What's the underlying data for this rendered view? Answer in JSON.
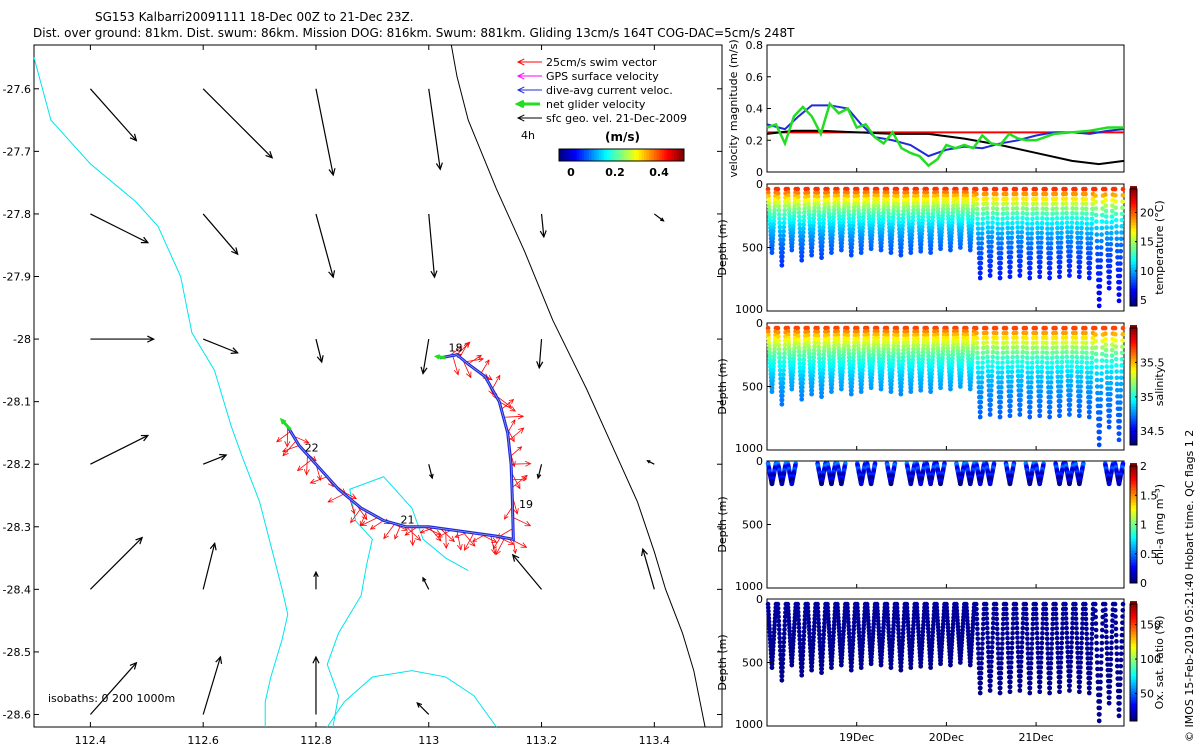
{
  "title": {
    "line1": "SG153 Kalbarri20091111 18-Dec 00Z to 21-Dec 23Z.",
    "line2": "Dist. over ground: 81km. Dist. swum: 86km. Mission DOG: 816km. Swum: 881km. Gliding 13cm/s 164T COG-DAC=5cm/s 248T"
  },
  "side_caption": "© IMOS 15-Feb-2019 05:21:40 Hobart time. QC flags 1  2",
  "colors": {
    "coast": "#00e5ee",
    "isobath": "#000000",
    "swim": "#ff0000",
    "gps": "#ff00ff",
    "dac": "#1f2bd8",
    "net": "#22dd22",
    "geo": "#000000"
  },
  "chart_data": [
    {
      "id": "map",
      "type": "scatter",
      "xlim": [
        112.3,
        113.52
      ],
      "ylim": [
        -28.62,
        -27.53
      ],
      "xticks": [
        112.4,
        112.6,
        112.8,
        113,
        113.2,
        113.4
      ],
      "xtick_labels": [
        "112.4",
        "112.6",
        "112.8",
        "113",
        "113.2",
        "113.4"
      ],
      "yticks": [
        -27.6,
        -27.7,
        -27.8,
        -27.9,
        -28,
        -28.1,
        -28.2,
        -28.3,
        -28.4,
        -28.5,
        -28.6
      ],
      "ytick_labels": [
        "-27.6",
        "-27.7",
        "-27.8",
        "-27.9",
        "-28",
        "-28.1",
        "-28.2",
        "-28.3",
        "-28.4",
        "-28.5",
        "-28.6"
      ],
      "legend": {
        "items": [
          {
            "label": "25cm/s swim vector",
            "color": "#ff0000",
            "style": "arrow"
          },
          {
            "label": "GPS surface velocity",
            "color": "#ff00ff",
            "style": "arrow"
          },
          {
            "label": "dive-avg current veloc.",
            "color": "#1f2bd8",
            "style": "arrow"
          },
          {
            "label": "net glider velocity",
            "color": "#22dd22",
            "style": "thick"
          },
          {
            "label": "sfc geo. vel. 21-Dec-2009",
            "color": "#000000",
            "style": "arrow"
          }
        ],
        "time_step": "4h",
        "units": "(m/s)",
        "colorbar_ticks": [
          "0",
          "0.2",
          "0.4"
        ]
      },
      "isobath_label": "isobaths: 0   200  1000m",
      "coastline": [
        [
          112.3,
          -27.55
        ],
        [
          112.33,
          -27.65
        ],
        [
          112.4,
          -27.72
        ],
        [
          112.48,
          -27.78
        ],
        [
          112.52,
          -27.82
        ],
        [
          112.56,
          -27.9
        ],
        [
          112.58,
          -27.99
        ],
        [
          112.62,
          -28.05
        ],
        [
          112.65,
          -28.14
        ],
        [
          112.67,
          -28.19
        ],
        [
          112.7,
          -28.26
        ],
        [
          112.72,
          -28.33
        ],
        [
          112.74,
          -28.4
        ],
        [
          112.75,
          -28.44
        ],
        [
          112.74,
          -28.48
        ],
        [
          112.72,
          -28.54
        ],
        [
          112.71,
          -28.58
        ],
        [
          112.71,
          -28.62
        ]
      ],
      "coast2": [
        [
          112.83,
          -28.62
        ],
        [
          112.84,
          -28.57
        ],
        [
          112.82,
          -28.52
        ],
        [
          112.84,
          -28.47
        ],
        [
          112.88,
          -28.41
        ],
        [
          112.89,
          -28.36
        ],
        [
          112.9,
          -28.32
        ],
        [
          112.87,
          -28.29
        ],
        [
          112.86,
          -28.24
        ],
        [
          112.92,
          -28.22
        ],
        [
          112.97,
          -28.27
        ],
        [
          112.99,
          -28.32
        ],
        [
          113.03,
          -28.35
        ],
        [
          113.07,
          -28.37
        ]
      ],
      "coast3": [
        [
          112.82,
          -28.62
        ],
        [
          112.85,
          -28.58
        ],
        [
          112.9,
          -28.54
        ],
        [
          112.97,
          -28.53
        ],
        [
          113.03,
          -28.54
        ],
        [
          113.08,
          -28.57
        ],
        [
          113.12,
          -28.62
        ]
      ],
      "isobath_1000": [
        [
          113.04,
          -27.53
        ],
        [
          113.05,
          -27.58
        ],
        [
          113.07,
          -27.65
        ],
        [
          113.12,
          -27.76
        ],
        [
          113.17,
          -27.86
        ],
        [
          113.22,
          -27.97
        ],
        [
          113.28,
          -28.08
        ],
        [
          113.33,
          -28.18
        ],
        [
          113.37,
          -28.26
        ],
        [
          113.4,
          -28.34
        ],
        [
          113.42,
          -28.4
        ],
        [
          113.45,
          -28.47
        ],
        [
          113.47,
          -28.53
        ],
        [
          113.49,
          -28.62
        ]
      ],
      "geo_vectors": [
        {
          "lon": 112.4,
          "lat": -27.6,
          "u": 0.04,
          "v": -0.045
        },
        {
          "lon": 112.6,
          "lat": -27.6,
          "u": 0.06,
          "v": -0.06
        },
        {
          "lon": 112.8,
          "lat": -27.6,
          "u": 0.015,
          "v": -0.075
        },
        {
          "lon": 113.0,
          "lat": -27.6,
          "u": 0.01,
          "v": -0.07
        },
        {
          "lon": 112.4,
          "lat": -27.8,
          "u": 0.05,
          "v": -0.025
        },
        {
          "lon": 112.6,
          "lat": -27.8,
          "u": 0.03,
          "v": -0.035
        },
        {
          "lon": 112.8,
          "lat": -27.8,
          "u": 0.015,
          "v": -0.055
        },
        {
          "lon": 113.0,
          "lat": -27.8,
          "u": 0.005,
          "v": -0.055
        },
        {
          "lon": 113.2,
          "lat": -27.8,
          "u": 0.002,
          "v": -0.02
        },
        {
          "lon": 113.4,
          "lat": -27.8,
          "u": 0.008,
          "v": -0.006
        },
        {
          "lon": 112.4,
          "lat": -28.0,
          "u": 0.055,
          "v": 0.0
        },
        {
          "lon": 112.6,
          "lat": -28.0,
          "u": 0.03,
          "v": -0.012
        },
        {
          "lon": 112.8,
          "lat": -28.0,
          "u": 0.005,
          "v": -0.02
        },
        {
          "lon": 113.0,
          "lat": -28.0,
          "u": -0.005,
          "v": -0.03
        },
        {
          "lon": 113.2,
          "lat": -28.0,
          "u": -0.002,
          "v": -0.025
        },
        {
          "lon": 112.4,
          "lat": -28.2,
          "u": 0.05,
          "v": 0.025
        },
        {
          "lon": 112.6,
          "lat": -28.2,
          "u": 0.02,
          "v": 0.008
        },
        {
          "lon": 113.0,
          "lat": -28.2,
          "u": 0.003,
          "v": -0.012
        },
        {
          "lon": 113.2,
          "lat": -28.2,
          "u": -0.003,
          "v": -0.012
        },
        {
          "lon": 113.4,
          "lat": -28.2,
          "u": -0.006,
          "v": 0.003
        },
        {
          "lon": 112.4,
          "lat": -28.4,
          "u": 0.045,
          "v": 0.045
        },
        {
          "lon": 112.6,
          "lat": -28.4,
          "u": 0.01,
          "v": 0.04
        },
        {
          "lon": 112.8,
          "lat": -28.4,
          "u": 0.0,
          "v": 0.015
        },
        {
          "lon": 113.0,
          "lat": -28.4,
          "u": -0.005,
          "v": 0.01
        },
        {
          "lon": 113.2,
          "lat": -28.4,
          "u": -0.025,
          "v": 0.03
        },
        {
          "lon": 113.4,
          "lat": -28.4,
          "u": -0.01,
          "v": 0.035
        },
        {
          "lon": 112.4,
          "lat": -28.6,
          "u": 0.04,
          "v": 0.045
        },
        {
          "lon": 112.6,
          "lat": -28.6,
          "u": 0.015,
          "v": 0.05
        },
        {
          "lon": 112.8,
          "lat": -28.6,
          "u": 0.0,
          "v": 0.05
        },
        {
          "lon": 113.0,
          "lat": -28.6,
          "u": -0.01,
          "v": 0.01
        }
      ],
      "track": [
        [
          112.75,
          -28.14
        ],
        [
          112.77,
          -28.17
        ],
        [
          112.8,
          -28.2
        ],
        [
          112.84,
          -28.24
        ],
        [
          112.88,
          -28.27
        ],
        [
          112.92,
          -28.29
        ],
        [
          112.96,
          -28.3
        ],
        [
          113.0,
          -28.3
        ],
        [
          113.04,
          -28.305
        ],
        [
          113.08,
          -28.31
        ],
        [
          113.12,
          -28.315
        ],
        [
          113.15,
          -28.32
        ],
        [
          113.148,
          -28.25
        ],
        [
          113.146,
          -28.2
        ],
        [
          113.14,
          -28.15
        ],
        [
          113.125,
          -28.1
        ],
        [
          113.1,
          -28.06
        ],
        [
          113.07,
          -28.04
        ],
        [
          113.05,
          -28.025
        ],
        [
          113.02,
          -28.03
        ]
      ],
      "track_labels": [
        {
          "text": "22",
          "lon": 112.78,
          "lat": -28.18
        },
        {
          "text": "21",
          "lon": 112.95,
          "lat": -28.295
        },
        {
          "text": "19",
          "lon": 113.16,
          "lat": -28.27
        },
        {
          "text": "18",
          "lon": 113.035,
          "lat": -28.02
        }
      ],
      "swim_vectors_start": [
        113.15,
        -28.32
      ],
      "swim_vectors_count": 40
    },
    {
      "id": "velocity",
      "type": "line",
      "ylabel": "velocity magnitude (m/s)",
      "ylim": [
        0,
        0.8
      ],
      "yticks": [
        0,
        0.2,
        0.4,
        0.6,
        0.8
      ],
      "ytick_labels": [
        "0",
        "0.2",
        "0.4",
        "0.6",
        "0.8"
      ],
      "xlim": [
        18.0,
        21.98
      ],
      "series": [
        {
          "color": "#ff0000",
          "x": [
            18.0,
            21.98
          ],
          "y": [
            0.25,
            0.25
          ]
        },
        {
          "color": "#000000",
          "x": [
            18.0,
            18.3,
            18.6,
            19.0,
            19.4,
            19.8,
            20.2,
            20.6,
            21.0,
            21.4,
            21.7,
            21.98
          ],
          "y": [
            0.24,
            0.26,
            0.26,
            0.25,
            0.24,
            0.24,
            0.21,
            0.17,
            0.12,
            0.07,
            0.05,
            0.07
          ]
        },
        {
          "color": "#1f2bd8",
          "x": [
            18.0,
            18.2,
            18.35,
            18.5,
            18.7,
            18.9,
            19.05,
            19.2,
            19.4,
            19.6,
            19.8,
            20.0,
            20.2,
            20.4,
            20.6,
            20.8,
            21.0,
            21.2,
            21.4,
            21.6,
            21.8,
            21.98
          ],
          "y": [
            0.3,
            0.27,
            0.35,
            0.42,
            0.42,
            0.4,
            0.3,
            0.22,
            0.2,
            0.17,
            0.1,
            0.14,
            0.16,
            0.15,
            0.18,
            0.2,
            0.23,
            0.25,
            0.25,
            0.24,
            0.26,
            0.27
          ]
        },
        {
          "color": "#22dd22",
          "x": [
            18.0,
            18.1,
            18.2,
            18.3,
            18.4,
            18.5,
            18.6,
            18.7,
            18.8,
            18.9,
            19.0,
            19.1,
            19.2,
            19.3,
            19.4,
            19.5,
            19.6,
            19.7,
            19.8,
            19.9,
            20.0,
            20.1,
            20.2,
            20.3,
            20.4,
            20.5,
            20.6,
            20.7,
            20.8,
            20.9,
            21.0,
            21.2,
            21.4,
            21.6,
            21.8,
            21.98
          ],
          "y": [
            0.28,
            0.3,
            0.18,
            0.35,
            0.41,
            0.35,
            0.24,
            0.43,
            0.37,
            0.4,
            0.28,
            0.3,
            0.22,
            0.18,
            0.25,
            0.15,
            0.12,
            0.1,
            0.04,
            0.08,
            0.17,
            0.15,
            0.17,
            0.15,
            0.23,
            0.18,
            0.17,
            0.24,
            0.21,
            0.2,
            0.2,
            0.24,
            0.25,
            0.26,
            0.28,
            0.28
          ]
        }
      ]
    },
    {
      "id": "temperature",
      "type": "scatter",
      "ylabel": "Depth (m)",
      "cbar_label": "temperature (°C)",
      "cbar_ticks": [
        "20",
        "15",
        "10",
        "5"
      ],
      "cbar_values": [
        20,
        15,
        10,
        5
      ],
      "cbar_range": [
        4,
        24
      ],
      "ylim": [
        0,
        1000
      ],
      "ytick_labels": [
        "0",
        "500",
        "1000"
      ],
      "ramp": "jet",
      "surface_value": 23,
      "deep_value": 6
    },
    {
      "id": "salinity",
      "type": "scatter",
      "ylabel": "Depth (m)",
      "cbar_label": "salinity",
      "cbar_ticks": [
        "35.5",
        "35",
        "34.5"
      ],
      "cbar_values": [
        35.5,
        35,
        34.5
      ],
      "cbar_range": [
        34.3,
        36.0
      ],
      "ylim": [
        0,
        1000
      ],
      "ytick_labels": [
        "0",
        "500",
        "1000"
      ],
      "ramp": "jet",
      "surface_value": 35.85,
      "deep_value": 34.6
    },
    {
      "id": "chla",
      "type": "scatter",
      "ylabel": "Depth (m)",
      "cbar_label": "chl-a (mg m⁻³)",
      "cbar_ticks": [
        "2",
        "1.5",
        "1",
        "0.5",
        "0"
      ],
      "cbar_values": [
        2,
        1.5,
        1,
        0.5,
        0
      ],
      "cbar_range": [
        0,
        2
      ],
      "ylim": [
        0,
        1000
      ],
      "ytick_labels": [
        "0",
        "500",
        "1000"
      ],
      "ramp": "jet",
      "surface_value": 0.4,
      "deep_value": 0.05
    },
    {
      "id": "oxygen",
      "type": "scatter",
      "ylabel": "Depth (m)",
      "cbar_label": "Ox. sat. ratio (%)",
      "cbar_ticks": [
        "150",
        "100",
        "50"
      ],
      "cbar_values": [
        150,
        100,
        50
      ],
      "cbar_range": [
        10,
        180
      ],
      "ylim": [
        0,
        1000
      ],
      "ytick_labels": [
        "0",
        "500",
        "1000"
      ],
      "ramp": "jet",
      "surface_value": 15,
      "deep_value": 12
    }
  ],
  "time_axis": {
    "xlim": [
      18.0,
      21.98
    ],
    "ticks": [
      19,
      20,
      21
    ],
    "tick_labels": [
      "19Dec",
      "20Dec",
      "21Dec"
    ]
  },
  "dives": {
    "count": 36,
    "max_depths_m": [
      500,
      600,
      480,
      560,
      520,
      540,
      500,
      480,
      520,
      500,
      470,
      480,
      500,
      520,
      500,
      490,
      500,
      470,
      480,
      460,
      480,
      700,
      680,
      700,
      690,
      680,
      700,
      690,
      700,
      690,
      680,
      690,
      700,
      920,
      780,
      880
    ]
  }
}
